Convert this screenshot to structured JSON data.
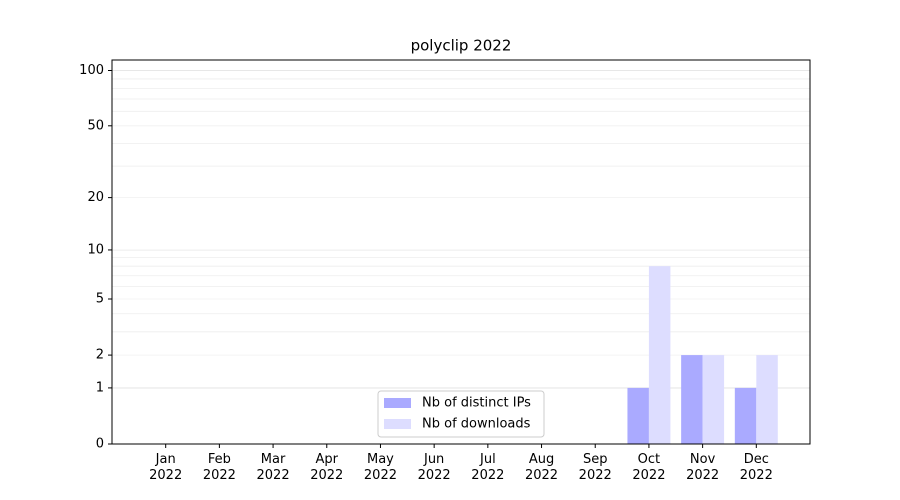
{
  "chart_data": {
    "type": "bar",
    "title": "polyclip 2022",
    "categories": [
      "Jan 2022",
      "Feb 2022",
      "Mar 2022",
      "Apr 2022",
      "May 2022",
      "Jun 2022",
      "Jul 2022",
      "Aug 2022",
      "Sep 2022",
      "Oct 2022",
      "Nov 2022",
      "Dec 2022"
    ],
    "series": [
      {
        "name": "Nb of distinct IPs",
        "color": "#aaaaff",
        "values": [
          0,
          0,
          0,
          0,
          0,
          0,
          0,
          0,
          0,
          1,
          2,
          1
        ]
      },
      {
        "name": "Nb of downloads",
        "color": "#ddddff",
        "values": [
          0,
          0,
          0,
          0,
          0,
          0,
          0,
          0,
          0,
          8,
          2,
          2
        ]
      }
    ],
    "yscale": "log1p",
    "ylim": [
      0,
      114
    ],
    "yticks": [
      0,
      1,
      2,
      5,
      10,
      20,
      50,
      100
    ],
    "yticks_major_grid": [
      1,
      10,
      100
    ],
    "yticks_minor": [
      3,
      4,
      6,
      7,
      8,
      9,
      30,
      40,
      60,
      70,
      80,
      90
    ],
    "grid": true,
    "legend": "lower center"
  }
}
